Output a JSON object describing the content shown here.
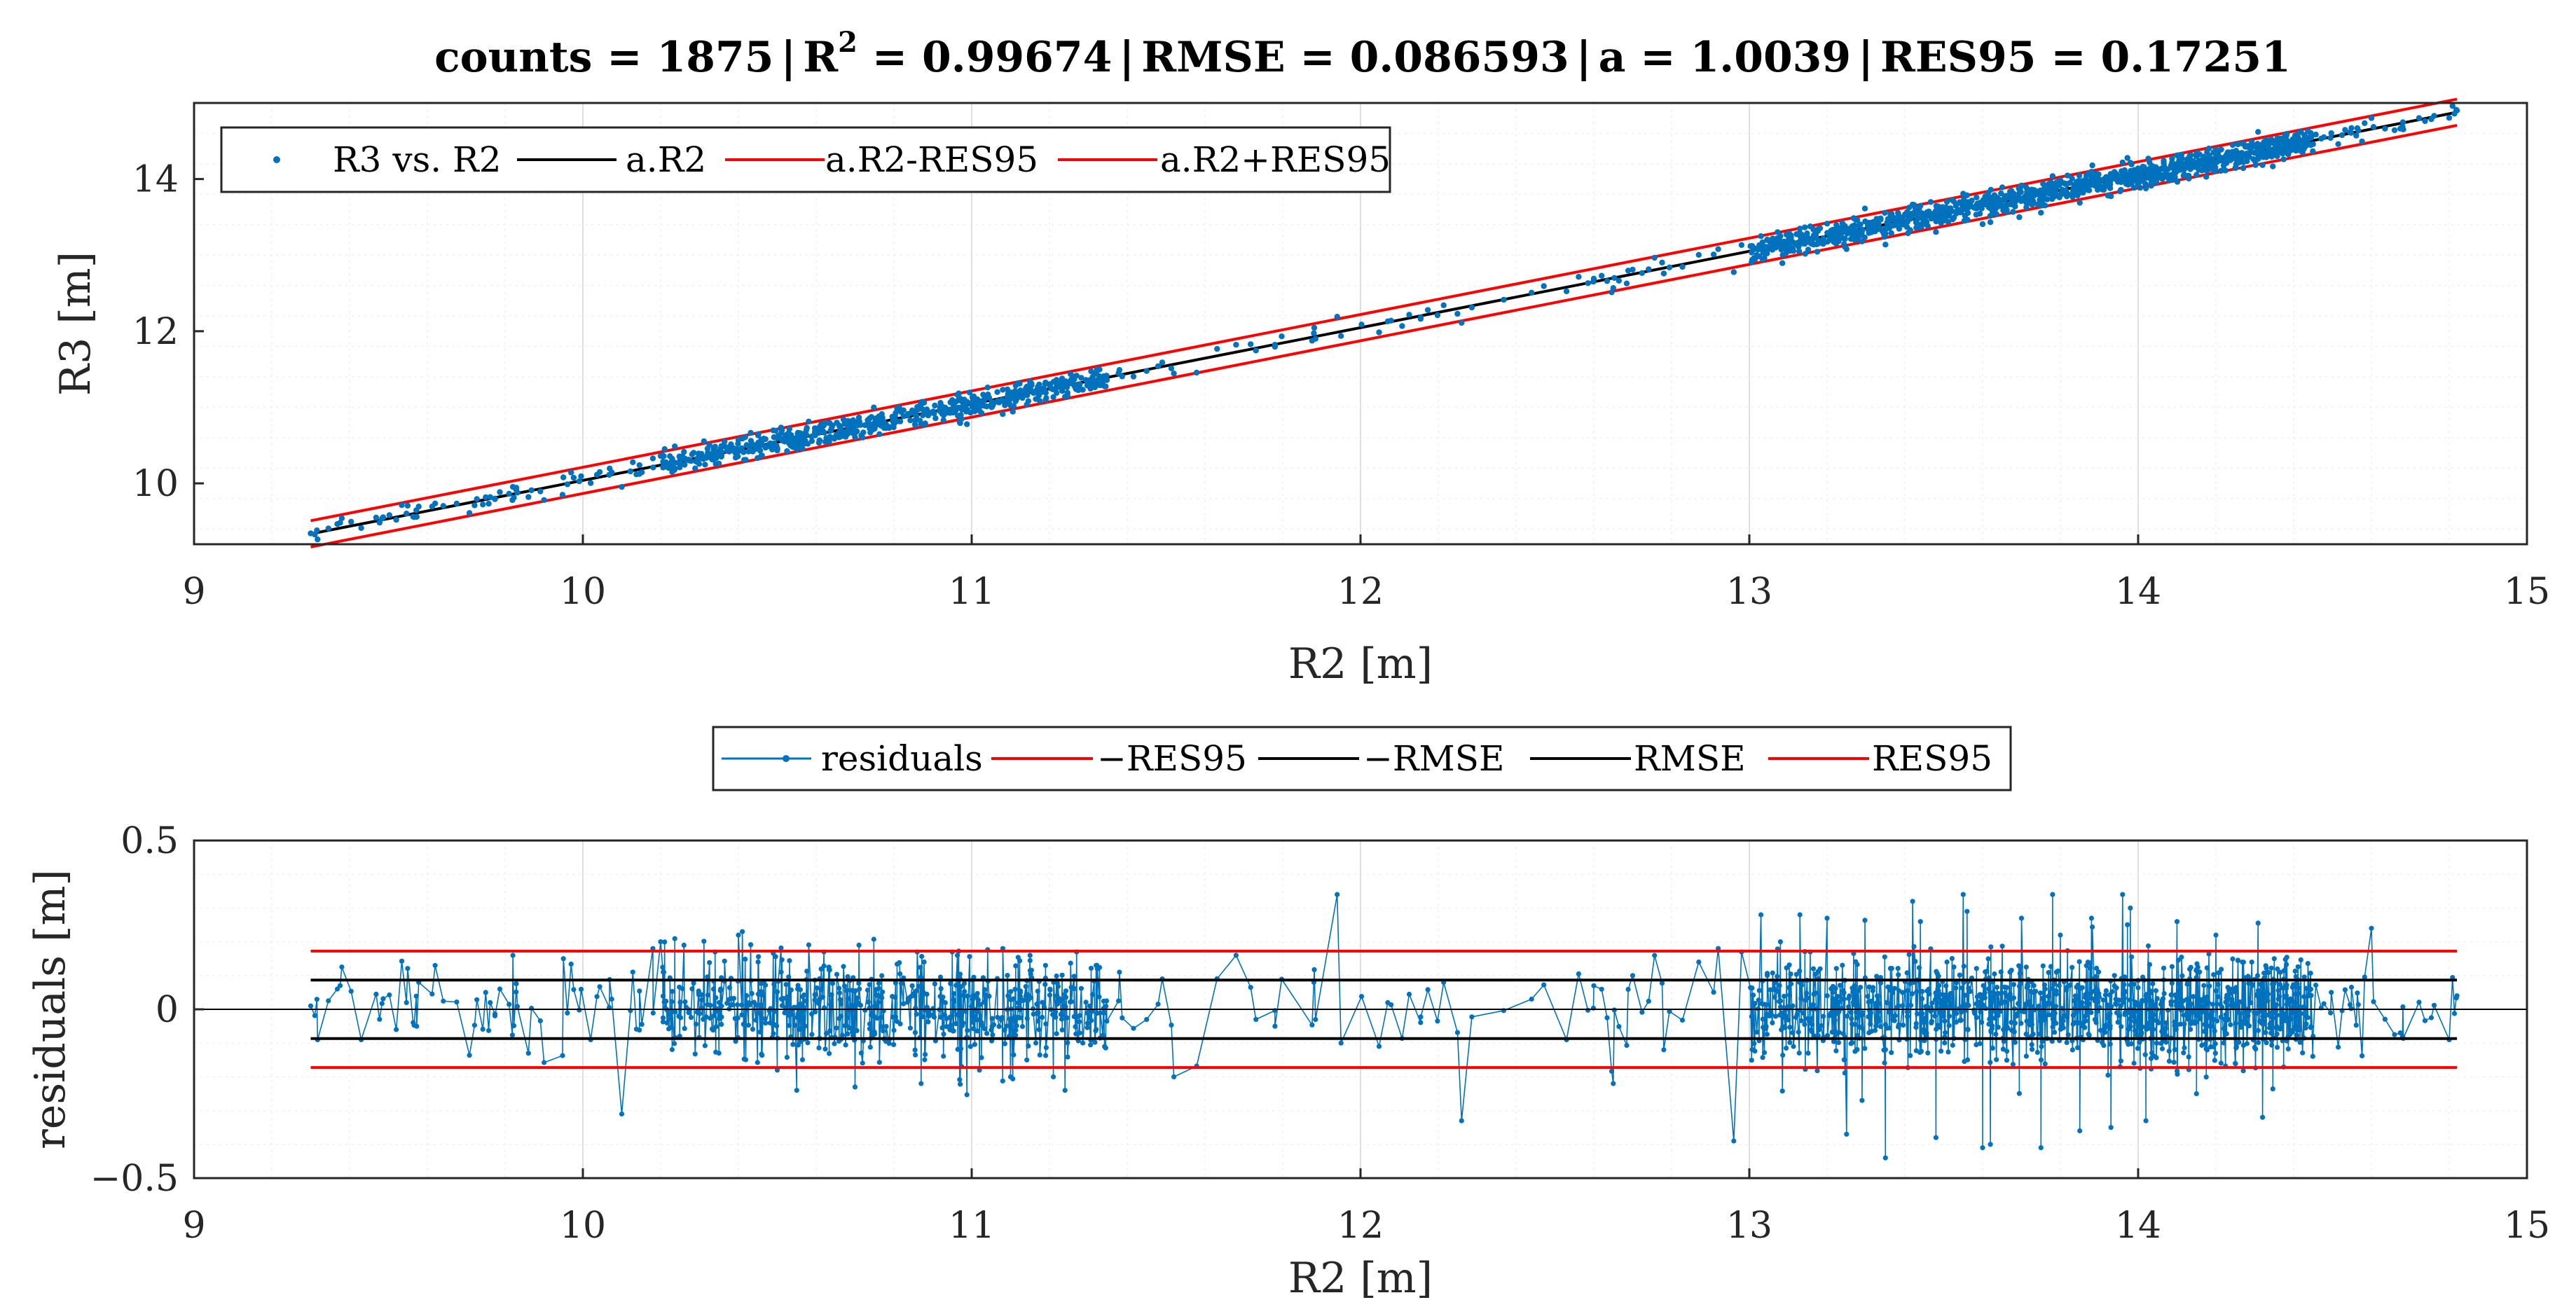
{
  "figure": {
    "title": "counts = 1875 | R2 = 0.99674 | RMSE = 0.086593 | a = 1.0039 | RES95 = 0.17251",
    "title_parts": {
      "counts": "counts = 1875",
      "r2_base": "R",
      "r2_sup": "2",
      "r2_value": " = 0.99674",
      "rmse": "RMSE = 0.086593",
      "a": "a = 1.0039",
      "res95": "RES95 = 0.17251",
      "separator": "|"
    }
  },
  "colors": {
    "scatter": "#0072BD",
    "fit_line": "#000000",
    "bounds": "#FF0000",
    "zero_line": "#000000",
    "rmse_lines": "#000000"
  },
  "chart_data": [
    {
      "type": "scatter",
      "title": "counts = 1875 | R2 = 0.99674 | RMSE = 0.086593 | a = 1.0039 | RES95 = 0.17251",
      "xlabel": "R2 [m]",
      "ylabel": "R3 [m]",
      "xlim": [
        9,
        15
      ],
      "ylim": [
        9.2,
        15.0
      ],
      "xticks": [
        9,
        10,
        11,
        12,
        13,
        14,
        15
      ],
      "yticks": [
        10,
        12,
        14
      ],
      "grid": true,
      "minor_grid": true,
      "legend_position": "top-left",
      "legend": [
        "R3 vs. R2",
        "a.R2",
        "a.R2-RES95",
        "a.R2+RES95"
      ],
      "counts": 1875,
      "a": 1.0039,
      "res95": 0.17251,
      "rmse": 0.086593,
      "r_squared": 0.99674,
      "fit_x_range": [
        9.3,
        14.82
      ],
      "series": [
        {
          "name": "R3 vs. R2",
          "kind": "points"
        },
        {
          "name": "a.R2",
          "kind": "line"
        },
        {
          "name": "a.R2-RES95",
          "kind": "line"
        },
        {
          "name": "a.R2+RES95",
          "kind": "line"
        }
      ]
    },
    {
      "type": "line",
      "xlabel": "R2 [m]",
      "ylabel": "residuals [m]",
      "xlim": [
        9,
        15
      ],
      "ylim": [
        -0.5,
        0.5
      ],
      "xticks": [
        9,
        10,
        11,
        12,
        13,
        14,
        15
      ],
      "yticks": [
        -0.5,
        0,
        0.5
      ],
      "ytick_labels": [
        "−0.5",
        "0",
        "0.5"
      ],
      "grid": true,
      "minor_grid": true,
      "legend_position": "top-center (outside)",
      "legend": [
        "residuals",
        "−RES95",
        "−RMSE",
        "RMSE",
        "RES95"
      ],
      "hlines": [
        {
          "name": "−RES95",
          "y": -0.17251
        },
        {
          "name": "−RMSE",
          "y": -0.086593
        },
        {
          "name": "RMSE",
          "y": 0.086593
        },
        {
          "name": "RES95",
          "y": 0.17251
        }
      ],
      "residual_points": [
        [
          9.3,
          0.01
        ],
        [
          9.43,
          -0.09
        ],
        [
          9.52,
          -0.06
        ],
        [
          9.62,
          0.13
        ],
        [
          9.75,
          0.05
        ],
        [
          9.82,
          0.16
        ],
        [
          9.86,
          -0.13
        ],
        [
          9.95,
          0.15
        ],
        [
          10.02,
          -0.09
        ],
        [
          10.1,
          -0.31
        ],
        [
          10.18,
          0.18
        ],
        [
          10.2,
          0.2
        ],
        [
          10.26,
          0.19
        ],
        [
          10.34,
          0.17
        ],
        [
          10.4,
          0.22
        ],
        [
          10.41,
          0.23
        ],
        [
          10.5,
          -0.18
        ],
        [
          10.55,
          -0.24
        ],
        [
          10.62,
          0.17
        ],
        [
          10.7,
          -0.23
        ],
        [
          10.71,
          0.19
        ],
        [
          10.86,
          0.17
        ],
        [
          10.87,
          -0.22
        ],
        [
          10.95,
          0.17
        ],
        [
          11.02,
          -0.18
        ],
        [
          11.08,
          0.18
        ],
        [
          11.1,
          -0.2
        ],
        [
          11.15,
          0.16
        ],
        [
          11.19,
          0.13
        ],
        [
          11.21,
          -0.2
        ],
        [
          11.24,
          -0.24
        ],
        [
          11.27,
          0.17
        ],
        [
          11.32,
          0.13
        ],
        [
          11.38,
          0.11
        ],
        [
          11.45,
          -0.03
        ],
        [
          11.49,
          0.09
        ],
        [
          11.52,
          -0.2
        ],
        [
          11.68,
          0.16
        ],
        [
          11.78,
          -0.05
        ],
        [
          11.88,
          0.08
        ],
        [
          11.94,
          0.34
        ],
        [
          11.95,
          -0.1
        ],
        [
          12.07,
          0.02
        ],
        [
          12.26,
          -0.33
        ],
        [
          12.44,
          0.03
        ],
        [
          12.53,
          -0.09
        ],
        [
          12.6,
          0.07
        ],
        [
          12.65,
          -0.22
        ],
        [
          12.7,
          0.1
        ],
        [
          12.78,
          -0.12
        ],
        [
          12.87,
          0.14
        ],
        [
          12.92,
          0.18
        ],
        [
          12.96,
          -0.39
        ],
        [
          12.98,
          0.17
        ],
        [
          13.03,
          0.28
        ],
        [
          13.08,
          0.2
        ],
        [
          13.13,
          0.28
        ],
        [
          13.2,
          0.27
        ],
        [
          13.25,
          -0.37
        ],
        [
          13.29,
          -0.27
        ],
        [
          13.35,
          -0.44
        ],
        [
          13.42,
          0.32
        ],
        [
          13.44,
          0.26
        ],
        [
          13.48,
          -0.38
        ],
        [
          13.55,
          0.34
        ],
        [
          13.56,
          0.29
        ],
        [
          13.6,
          -0.41
        ],
        [
          13.62,
          -0.4
        ],
        [
          13.7,
          0.27
        ],
        [
          13.75,
          -0.41
        ],
        [
          13.78,
          0.34
        ],
        [
          13.8,
          0.22
        ],
        [
          13.85,
          -0.36
        ],
        [
          13.88,
          0.27
        ],
        [
          13.93,
          -0.35
        ],
        [
          13.96,
          0.34
        ],
        [
          13.98,
          0.3
        ],
        [
          14.02,
          -0.33
        ],
        [
          14.1,
          0.26
        ],
        [
          14.15,
          -0.25
        ],
        [
          14.2,
          0.22
        ],
        [
          14.32,
          -0.32
        ],
        [
          14.35,
          0.15
        ],
        [
          14.45,
          -0.08
        ],
        [
          14.6,
          0.24
        ],
        [
          14.68,
          -0.08
        ],
        [
          14.8,
          -0.09
        ],
        [
          14.82,
          0.04
        ]
      ]
    }
  ],
  "top_plot": {
    "ylabel": "R3 [m]",
    "xlabel": "R2 [m]",
    "xticks": [
      "9",
      "10",
      "11",
      "12",
      "13",
      "14",
      "15"
    ],
    "yticks": [
      "10",
      "12",
      "14"
    ],
    "legend": [
      "R3 vs. R2",
      "a.R2",
      "a.R2-RES95",
      "a.R2+RES95"
    ]
  },
  "bottom_plot": {
    "ylabel": "residuals [m]",
    "xlabel": "R2 [m]",
    "xticks": [
      "9",
      "10",
      "11",
      "12",
      "13",
      "14",
      "15"
    ],
    "yticks": [
      "−0.5",
      "0",
      "0.5"
    ],
    "legend": [
      "residuals",
      "−RES95",
      "−RMSE",
      "RMSE",
      "RES95"
    ]
  }
}
